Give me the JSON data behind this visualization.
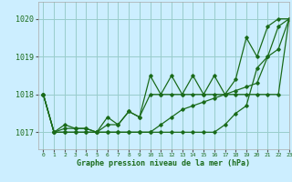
{
  "xlabel": "Graphe pression niveau de la mer (hPa)",
  "bg_color": "#cceeff",
  "grid_color": "#99cccc",
  "line_color": "#1a6b1a",
  "xlim": [
    -0.5,
    23
  ],
  "ylim": [
    1016.55,
    1020.45
  ],
  "yticks": [
    1017,
    1018,
    1019,
    1020
  ],
  "xticks": [
    0,
    1,
    2,
    3,
    4,
    5,
    6,
    7,
    8,
    9,
    10,
    11,
    12,
    13,
    14,
    15,
    16,
    17,
    18,
    19,
    20,
    21,
    22,
    23
  ],
  "series": [
    [
      1018.0,
      1017.0,
      1017.0,
      1017.0,
      1017.0,
      1017.0,
      1017.0,
      1017.0,
      1017.0,
      1017.0,
      1017.0,
      1017.2,
      1017.4,
      1017.6,
      1017.7,
      1017.8,
      1017.9,
      1018.0,
      1018.1,
      1018.2,
      1018.3,
      1019.0,
      1019.8,
      1020.0
    ],
    [
      1018.0,
      1017.0,
      1017.1,
      1017.1,
      1017.1,
      1017.0,
      1017.2,
      1017.2,
      1017.55,
      1017.4,
      1018.0,
      1018.0,
      1018.0,
      1018.0,
      1018.0,
      1018.0,
      1018.0,
      1018.0,
      1018.0,
      1018.0,
      1018.0,
      1018.0,
      1018.0,
      1020.0
    ],
    [
      1018.0,
      1017.0,
      1017.2,
      1017.1,
      1017.1,
      1017.0,
      1017.4,
      1017.2,
      1017.55,
      1017.4,
      1018.5,
      1018.0,
      1018.5,
      1018.0,
      1018.5,
      1018.0,
      1018.5,
      1018.0,
      1018.4,
      1019.5,
      1019.0,
      1019.8,
      1020.0,
      1020.0
    ],
    [
      1018.0,
      1017.0,
      1017.0,
      1017.0,
      1017.0,
      1017.0,
      1017.0,
      1017.0,
      1017.0,
      1017.0,
      1017.0,
      1017.0,
      1017.0,
      1017.0,
      1017.0,
      1017.0,
      1017.0,
      1017.2,
      1017.5,
      1017.7,
      1018.7,
      1019.0,
      1019.2,
      1020.0
    ]
  ]
}
